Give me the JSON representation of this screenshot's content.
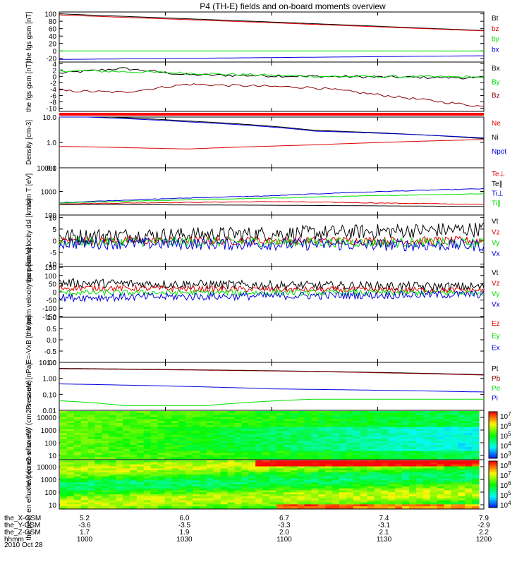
{
  "title": "P4 (TH-E) fields and on-board moments overview",
  "date_label": "2010 Oct 28",
  "colors": {
    "black": "#000000",
    "red": "#e00000",
    "dark_red": "#8b0000",
    "green": "#00dd00",
    "blue": "#0000dd",
    "bright_red": "#ff0000"
  },
  "orbit_table": {
    "row_labels": [
      "the_X-GSM",
      "the_Y-GSM",
      "the_Z-GSM",
      "hhmm"
    ],
    "columns": [
      {
        "values": [
          "5.2",
          "-3.6",
          "1.7",
          "1000"
        ]
      },
      {
        "values": [
          "6.0",
          "-3.5",
          "1.9",
          "1030"
        ]
      },
      {
        "values": [
          "6.7",
          "-3.3",
          "2.0",
          "1100"
        ]
      },
      {
        "values": [
          "7.4",
          "-3.1",
          "2.1",
          "1130"
        ]
      },
      {
        "values": [
          "7.9",
          "-2.9",
          "2.2",
          "1200"
        ]
      }
    ]
  },
  "chart_data": [
    {
      "id": "fgs-gsm",
      "type": "line",
      "ylabel": "the fgs gsm [nT]",
      "yticks": [
        "100",
        "80",
        "60",
        "40",
        "20",
        "0",
        "-20"
      ],
      "ylim": [
        -30,
        105
      ],
      "series": [
        {
          "name": "Bt",
          "color": "#000000",
          "x": [
            0,
            0.5,
            1
          ],
          "values": [
            100,
            78,
            55
          ]
        },
        {
          "name": "bz",
          "color": "#e00000",
          "x": [
            0,
            0.5,
            1
          ],
          "values": [
            97,
            76,
            54
          ]
        },
        {
          "name": "by",
          "color": "#00dd00",
          "x": [
            0,
            0.5,
            1
          ],
          "values": [
            0,
            0,
            0
          ]
        },
        {
          "name": "bx",
          "color": "#0000dd",
          "x": [
            0,
            0.5,
            1
          ],
          "values": [
            -23,
            -18,
            -13
          ]
        }
      ]
    },
    {
      "id": "fgs-gsm-detrended",
      "type": "line",
      "ylabel": "the fgs gsm [nT]",
      "yticks": [
        "4",
        "2",
        "0",
        "-2",
        "-4",
        "-6",
        "-8",
        "-10"
      ],
      "ylim": [
        -11,
        4.5
      ],
      "series": [
        {
          "name": "Bx",
          "color": "#000000",
          "x": [
            0,
            0.15,
            0.3,
            0.6,
            1
          ],
          "values": [
            1,
            2.5,
            0.5,
            0,
            -0.5
          ]
        },
        {
          "name": "By",
          "color": "#00dd00",
          "x": [
            0,
            0.15,
            0.3,
            0.6,
            1
          ],
          "values": [
            1.8,
            1.5,
            1,
            0,
            -0.2
          ]
        },
        {
          "name": "Bz",
          "color": "#8b0000",
          "x": [
            0,
            0.15,
            0.3,
            0.6,
            1
          ],
          "values": [
            -4.5,
            -5,
            -2.5,
            -3.5,
            -9.5
          ]
        }
      ]
    },
    {
      "id": "flag-bar",
      "type": "bar",
      "color": "#ff0000"
    },
    {
      "id": "density",
      "type": "line",
      "log": true,
      "ylabel": "Density [cm-3]",
      "yticks": [
        "10.0",
        "1.0",
        "0.1"
      ],
      "ylim": [
        0.1,
        10
      ],
      "series": [
        {
          "name": "Ne",
          "color": "#e00000",
          "x": [
            0,
            0.3,
            0.6,
            1
          ],
          "values": [
            0.7,
            0.55,
            0.8,
            1.3
          ]
        },
        {
          "name": "Ni",
          "color": "#000000",
          "x": [
            0,
            0.3,
            0.6,
            1
          ],
          "values": [
            12,
            7,
            3,
            1.4
          ]
        },
        {
          "name": "Npot",
          "color": "#0000dd",
          "x": [
            0,
            0.3,
            0.6,
            1
          ],
          "values": [
            11,
            6.5,
            2.8,
            1.5
          ]
        }
      ]
    },
    {
      "id": "temperature",
      "type": "line",
      "log": true,
      "ylabel": "mom T [eV]",
      "yticks": [
        "10000",
        "1000",
        "100"
      ],
      "ylim": [
        100,
        10000
      ],
      "series": [
        {
          "name": "Te⊥",
          "color": "#e00000",
          "x": [
            0,
            0.5,
            1
          ],
          "values": [
            300,
            370,
            280
          ]
        },
        {
          "name": "Te∥",
          "color": "#000000",
          "x": [
            0,
            0.5,
            1
          ],
          "values": [
            280,
            260,
            230
          ]
        },
        {
          "name": "Ti⊥",
          "color": "#0000dd",
          "x": [
            0,
            0.5,
            1
          ],
          "values": [
            330,
            650,
            1300
          ]
        },
        {
          "name": "Ti∥",
          "color": "#00dd00",
          "x": [
            0,
            0.5,
            1
          ],
          "values": [
            320,
            520,
            800
          ]
        }
      ]
    },
    {
      "id": "peim-velocity-dsl",
      "type": "line",
      "ylabel": "the peim velocity dsl [km/s]",
      "yticks": [
        "10",
        "5",
        "0",
        "-5",
        "-10"
      ],
      "ylim": [
        -11,
        11
      ],
      "series": [
        {
          "name": "Vt",
          "color": "#000000",
          "noise": 3.2,
          "level": [
            2,
            3,
            5
          ]
        },
        {
          "name": "Vz",
          "color": "#e00000",
          "noise": 1.8,
          "level": [
            0,
            0,
            0
          ]
        },
        {
          "name": "Vy",
          "color": "#00dd00",
          "noise": 2,
          "level": [
            -0.5,
            -0.5,
            -1
          ]
        },
        {
          "name": "Vx",
          "color": "#0000dd",
          "noise": 2.6,
          "level": [
            -1,
            -1.5,
            -2
          ]
        }
      ]
    },
    {
      "id": "peim-velocity-gsm",
      "type": "line",
      "ylabel": "the peim velocity gsm [km/s]",
      "yticks": [
        "150",
        "100",
        "50",
        "0",
        "-50",
        "-100",
        "-150"
      ],
      "ylim": [
        -155,
        155
      ],
      "series": [
        {
          "name": "Vt",
          "color": "#000000",
          "noise": 28,
          "level": [
            55,
            40,
            30
          ]
        },
        {
          "name": "Vz",
          "color": "#e00000",
          "noise": 18,
          "level": [
            25,
            15,
            10
          ]
        },
        {
          "name": "Vy",
          "color": "#00dd00",
          "noise": 18,
          "level": [
            -5,
            -5,
            -5
          ]
        },
        {
          "name": "Vx",
          "color": "#0000dd",
          "noise": 24,
          "level": [
            -35,
            -25,
            -15
          ]
        }
      ]
    },
    {
      "id": "e-field",
      "type": "line",
      "ylabel": "E=-VxB [mV/m]",
      "yticks": [
        "1.0",
        "0.5",
        "0.0",
        "-0.5",
        "-1.0"
      ],
      "ylim": [
        -1,
        1
      ],
      "series": [
        {
          "name": "Ez",
          "color": "#e00000"
        },
        {
          "name": "Ey",
          "color": "#00dd00"
        },
        {
          "name": "Ex",
          "color": "#0000dd"
        }
      ]
    },
    {
      "id": "pressure",
      "type": "line",
      "log": true,
      "ylabel": "Pressure [nPa]",
      "yticks": [
        "10.00",
        "1.00",
        "0.10",
        "0.01"
      ],
      "ylim": [
        0.01,
        10
      ],
      "series": [
        {
          "name": "Pt",
          "color": "#000000",
          "x": [
            0,
            0.5,
            1
          ],
          "values": [
            4.2,
            3.0,
            1.7
          ]
        },
        {
          "name": "Pb",
          "color": "#8b0000",
          "x": [
            0,
            0.5,
            1
          ],
          "values": [
            4.0,
            2.9,
            1.6
          ]
        },
        {
          "name": "Pe",
          "color": "#00dd00",
          "x": [
            0,
            0.15,
            0.35,
            0.6,
            1
          ],
          "values": [
            0.04,
            0.02,
            0.02,
            0.05,
            0.05
          ]
        },
        {
          "name": "Pi",
          "color": "#0000dd",
          "x": [
            0,
            0.5,
            1
          ],
          "values": [
            0.45,
            0.22,
            0.14
          ]
        }
      ]
    },
    {
      "id": "peir-spectrogram",
      "type": "heatmap",
      "ylabel": "the peir en eflux eV/ (cm2-s- sr-eV)",
      "yticks": [
        "10000",
        "1000",
        "100",
        "10"
      ],
      "colorbar_ticks": [
        "10^7",
        "10^6",
        "10^5",
        "10^4",
        "10^3"
      ]
    },
    {
      "id": "peer-spectrogram",
      "type": "heatmap",
      "ylabel": "the peer en eflux eV/ (cm2-s- sr-eV)",
      "yticks": [
        "10000",
        "1000",
        "100",
        "10"
      ],
      "colorbar_ticks": [
        "10^8",
        "10^7",
        "10^6",
        "10^5",
        "10^4"
      ]
    }
  ]
}
